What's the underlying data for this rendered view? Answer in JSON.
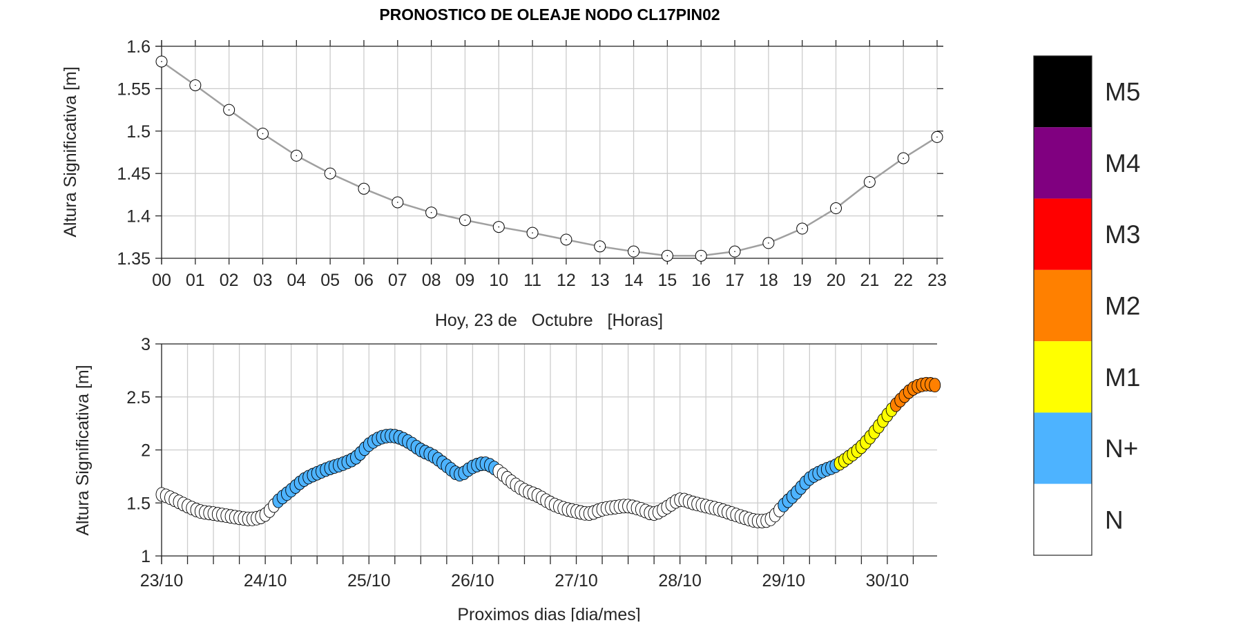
{
  "chart_data": [
    {
      "type": "line",
      "title": "PRONOSTICO DE OLEAJE NODO CL17PIN02",
      "xlabel": "Hoy, 23 de   Octubre   [Horas]",
      "ylabel": "Altura Significativa [m]",
      "xlim": [
        0,
        23
      ],
      "ylim": [
        1.35,
        1.6
      ],
      "grid": true,
      "x_ticks": [
        "00",
        "01",
        "02",
        "03",
        "04",
        "05",
        "06",
        "07",
        "08",
        "09",
        "10",
        "11",
        "12",
        "13",
        "14",
        "15",
        "16",
        "17",
        "18",
        "19",
        "20",
        "21",
        "22",
        "23"
      ],
      "y_ticks": [
        "1.35",
        "1.4",
        "1.45",
        "1.5",
        "1.55",
        "1.6"
      ],
      "y_tick_values": [
        1.35,
        1.4,
        1.45,
        1.5,
        1.55,
        1.6
      ],
      "line_color": "#a0a0a0",
      "x": [
        0,
        1,
        2,
        3,
        4,
        5,
        6,
        7,
        8,
        9,
        10,
        11,
        12,
        13,
        14,
        15,
        16,
        17,
        18,
        19,
        20,
        21,
        22,
        23
      ],
      "values": [
        1.582,
        1.554,
        1.525,
        1.497,
        1.471,
        1.45,
        1.432,
        1.416,
        1.404,
        1.395,
        1.387,
        1.38,
        1.372,
        1.364,
        1.358,
        1.353,
        1.353,
        1.358,
        1.368,
        1.385,
        1.409,
        1.44,
        1.468,
        1.493
      ]
    },
    {
      "type": "scatter",
      "xlabel": "Proximos dias [dia/mes]",
      "ylabel": "Altura Significativa [m]",
      "xlim": [
        0,
        7.48
      ],
      "ylim": [
        1,
        3
      ],
      "grid": true,
      "x_ticks": [
        "23/10",
        "24/10",
        "25/10",
        "26/10",
        "27/10",
        "28/10",
        "29/10",
        "30/10"
      ],
      "y_ticks": [
        "1",
        "1.5",
        "2",
        "2.5",
        "3"
      ],
      "y_tick_values": [
        1,
        1.5,
        2,
        2.5,
        3
      ],
      "x_step_days": 0.125,
      "values": [
        1.58,
        1.53,
        1.47,
        1.42,
        1.4,
        1.38,
        1.36,
        1.35,
        1.39,
        1.52,
        1.62,
        1.72,
        1.78,
        1.83,
        1.87,
        1.93,
        2.05,
        2.12,
        2.13,
        2.08,
        2.0,
        1.94,
        1.85,
        1.77,
        1.84,
        1.87,
        1.8,
        1.7,
        1.62,
        1.57,
        1.5,
        1.45,
        1.42,
        1.4,
        1.44,
        1.46,
        1.47,
        1.44,
        1.4,
        1.46,
        1.53,
        1.5,
        1.47,
        1.44,
        1.4,
        1.36,
        1.33,
        1.35,
        1.48,
        1.6,
        1.73,
        1.8,
        1.85,
        1.93,
        2.03,
        2.17,
        2.33,
        2.47,
        2.58,
        2.62,
        2.6,
        2.55
      ],
      "category_segments": [
        {
          "from": 1.1,
          "to": 3.22,
          "category": "N+"
        },
        {
          "from": 5.97,
          "to": 6.5,
          "category": "N+"
        },
        {
          "from": 6.5,
          "to": 7.05,
          "category": "M1"
        },
        {
          "from": 7.05,
          "to": 7.48,
          "category": "M2"
        }
      ]
    }
  ],
  "legend": {
    "placement": "right",
    "levels": [
      {
        "label": "M5",
        "color": "#000000"
      },
      {
        "label": "M4",
        "color": "#800080"
      },
      {
        "label": "M3",
        "color": "#ff0000"
      },
      {
        "label": "M2",
        "color": "#ff8000"
      },
      {
        "label": "M1",
        "color": "#ffff00"
      },
      {
        "label": "N+",
        "color": "#4db3ff"
      },
      {
        "label": "N",
        "color": "#ffffff"
      }
    ]
  }
}
